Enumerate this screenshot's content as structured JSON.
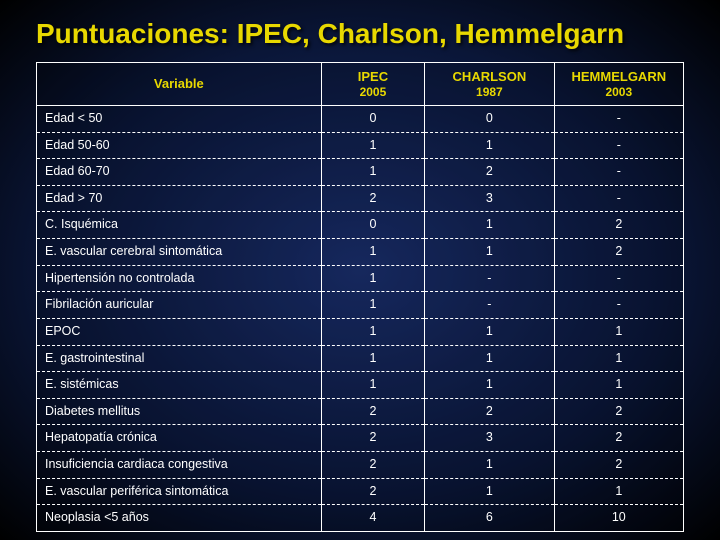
{
  "title": "Puntuaciones: IPEC, Charlson, Hemmelgarn",
  "table": {
    "type": "table",
    "background_color": "transparent",
    "border_color": "#ffffff",
    "header_text_color": "#e8d800",
    "cell_text_color": "#ffffff",
    "font_family": "Arial",
    "header_fontsize": 13,
    "cell_fontsize": 12.5,
    "columns": [
      {
        "line1": "Variable",
        "line2": "",
        "align": "left",
        "width_pct": 44
      },
      {
        "line1": "IPEC",
        "line2": "2005",
        "align": "center",
        "width_pct": 16
      },
      {
        "line1": "CHARLSON",
        "line2": "1987",
        "align": "center",
        "width_pct": 20
      },
      {
        "line1": "HEMMELGARN",
        "line2": "2003",
        "align": "center",
        "width_pct": 20
      }
    ],
    "rows": [
      [
        "Edad <  50",
        "0",
        "0",
        "-"
      ],
      [
        "Edad 50-60",
        "1",
        "1",
        "-"
      ],
      [
        "Edad 60-70",
        "1",
        "2",
        "-"
      ],
      [
        "Edad > 70",
        "2",
        "3",
        "-"
      ],
      [
        "C. Isquémica",
        "0",
        "1",
        "2"
      ],
      [
        "E. vascular cerebral sintomática",
        "1",
        "1",
        "2"
      ],
      [
        "Hipertensión no controlada",
        "1",
        "-",
        "-"
      ],
      [
        "Fibrilación auricular",
        "1",
        "-",
        "-"
      ],
      [
        "EPOC",
        "1",
        "1",
        "1"
      ],
      [
        "E. gastrointestinal",
        "1",
        "1",
        "1"
      ],
      [
        "E. sistémicas",
        "1",
        "1",
        "1"
      ],
      [
        "Diabetes mellitus",
        "2",
        "2",
        "2"
      ],
      [
        "Hepatopatía crónica",
        "2",
        "3",
        "2"
      ],
      [
        "Insuficiencia cardiaca congestiva",
        "2",
        "1",
        "2"
      ],
      [
        "E. vascular periférica sintomática",
        "2",
        "1",
        "1"
      ],
      [
        "Neoplasia <5 años",
        "4",
        "6",
        "10"
      ]
    ]
  }
}
